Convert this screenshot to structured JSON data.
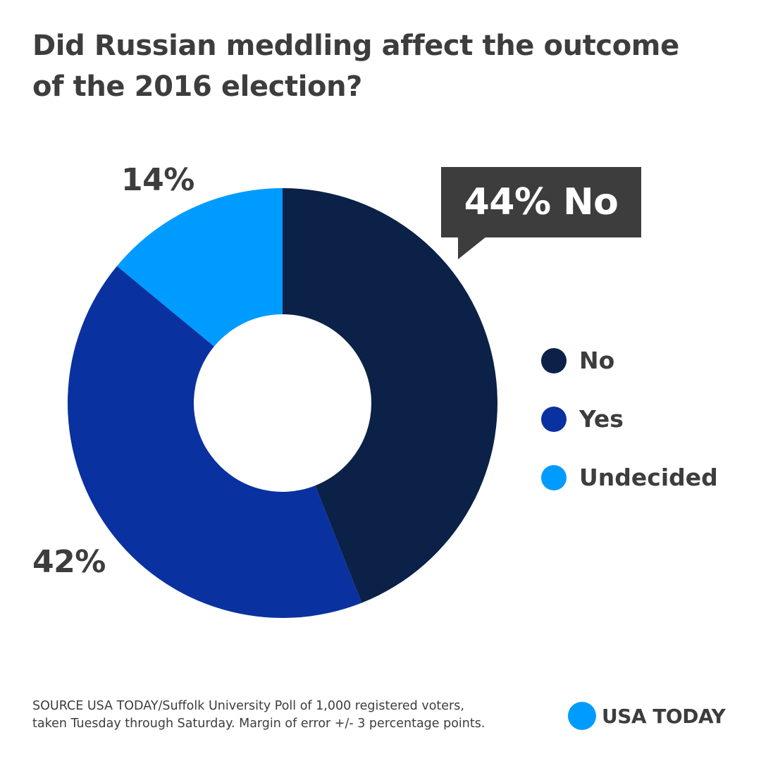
{
  "title": {
    "line1": "Did Russian meddling affect the outcome",
    "line2": "of the 2016 election?"
  },
  "chart_data": {
    "type": "pie",
    "title": "Did Russian meddling affect the outcome of the 2016 election?",
    "donut": true,
    "categories": [
      "No",
      "Yes",
      "Undecided"
    ],
    "values": [
      44,
      42,
      14
    ],
    "unit": "%",
    "colors": [
      "#0b2147",
      "#0a31a0",
      "#009bff"
    ],
    "labels": [
      "44% No",
      "42%",
      "14%"
    ],
    "legend_position": "right"
  },
  "callout": {
    "text": "44% No"
  },
  "slice_labels": {
    "yes": "42%",
    "undecided": "14%"
  },
  "legend": [
    {
      "label": "No",
      "color": "#0b2147"
    },
    {
      "label": "Yes",
      "color": "#0a31a0"
    },
    {
      "label": "Undecided",
      "color": "#009bff"
    }
  ],
  "source": {
    "line1": "SOURCE USA TODAY/Suffolk University Poll of 1,000 registered voters,",
    "line2": "taken Tuesday through Saturday. Margin of error +/- 3 percentage points."
  },
  "logo": {
    "text": "USA TODAY",
    "color": "#009bff"
  }
}
